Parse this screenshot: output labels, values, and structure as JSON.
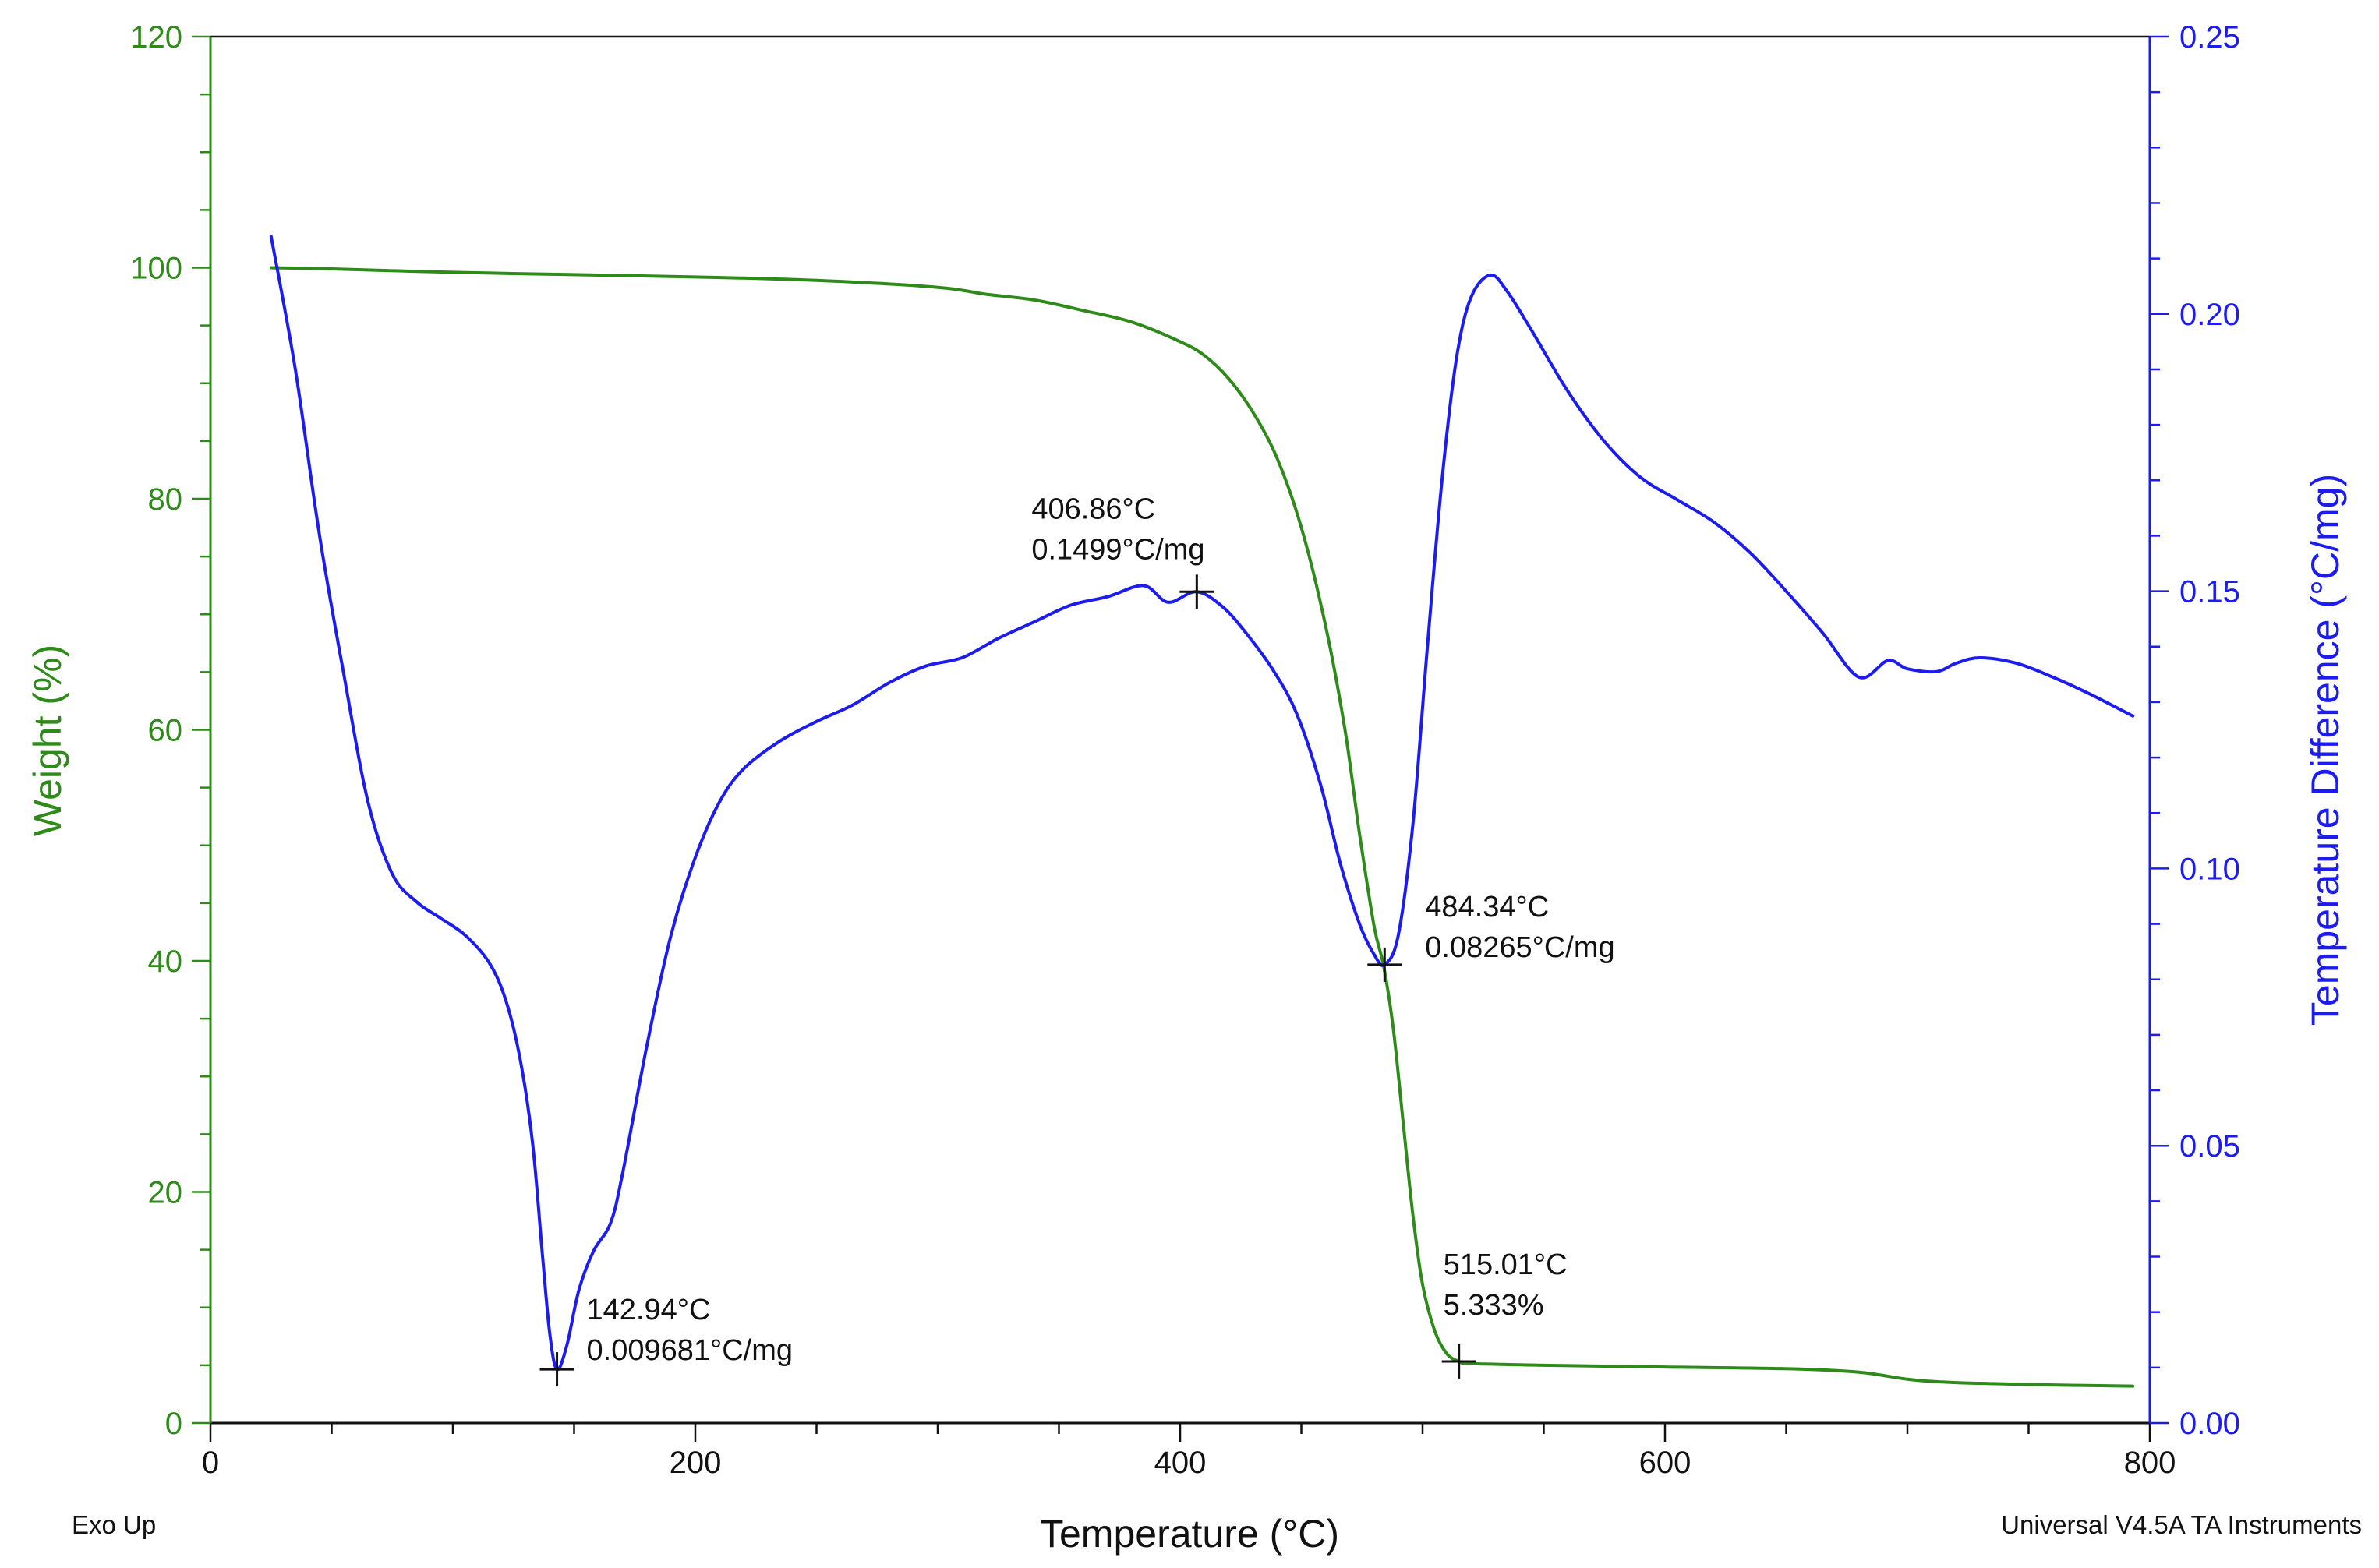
{
  "chart_data": {
    "type": "line",
    "x_axis": {
      "label": "Temperature (°C)",
      "range": [
        0,
        800
      ],
      "ticks": [
        0,
        200,
        400,
        600,
        800
      ]
    },
    "y_left": {
      "label": "Weight (%)",
      "range": [
        0,
        120
      ],
      "ticks": [
        0,
        20,
        40,
        60,
        80,
        100,
        120
      ],
      "color": "#2e8b1a"
    },
    "y_right": {
      "label": "Temperature Difference (°C/mg)",
      "range": [
        0,
        0.25
      ],
      "ticks": [
        "0.00",
        "0.05",
        "0.10",
        "0.15",
        "0.20",
        "0.25"
      ],
      "color": "#1c1cf0"
    },
    "series": [
      {
        "name": "Weight (%)",
        "axis": "left",
        "color": "#2e8b1a",
        "points": [
          [
            25,
            100
          ],
          [
            50,
            99.9
          ],
          [
            100,
            99.6
          ],
          [
            150,
            99.4
          ],
          [
            200,
            99.2
          ],
          [
            250,
            98.9
          ],
          [
            300,
            98.3
          ],
          [
            320,
            97.7
          ],
          [
            340,
            97.2
          ],
          [
            360,
            96.3
          ],
          [
            380,
            95.3
          ],
          [
            400,
            93.6
          ],
          [
            410,
            92.4
          ],
          [
            420,
            90.4
          ],
          [
            430,
            87.5
          ],
          [
            440,
            83.5
          ],
          [
            450,
            77.5
          ],
          [
            460,
            69
          ],
          [
            468,
            60
          ],
          [
            474,
            51
          ],
          [
            480,
            43
          ],
          [
            484,
            39.5
          ],
          [
            488,
            34
          ],
          [
            492,
            26
          ],
          [
            496,
            18
          ],
          [
            500,
            12
          ],
          [
            505,
            8
          ],
          [
            510,
            6
          ],
          [
            515,
            5.333
          ],
          [
            520,
            5.15
          ],
          [
            550,
            5
          ],
          [
            600,
            4.85
          ],
          [
            650,
            4.7
          ],
          [
            680,
            4.4
          ],
          [
            700,
            3.8
          ],
          [
            720,
            3.5
          ],
          [
            760,
            3.3
          ],
          [
            793,
            3.2
          ]
        ]
      },
      {
        "name": "Temperature Difference (°C/mg)",
        "axis": "right",
        "color": "#1c1cf0",
        "points": [
          [
            25,
            0.214
          ],
          [
            35,
            0.19
          ],
          [
            45,
            0.16
          ],
          [
            55,
            0.135
          ],
          [
            65,
            0.112
          ],
          [
            75,
            0.099
          ],
          [
            85,
            0.094
          ],
          [
            95,
            0.091
          ],
          [
            105,
            0.088
          ],
          [
            115,
            0.083
          ],
          [
            122,
            0.076
          ],
          [
            128,
            0.065
          ],
          [
            133,
            0.05
          ],
          [
            137,
            0.03
          ],
          [
            140,
            0.016
          ],
          [
            142.94,
            0.009681
          ],
          [
            147,
            0.014
          ],
          [
            152,
            0.024
          ],
          [
            158,
            0.031
          ],
          [
            165,
            0.036
          ],
          [
            170,
            0.045
          ],
          [
            180,
            0.068
          ],
          [
            190,
            0.088
          ],
          [
            200,
            0.102
          ],
          [
            210,
            0.112
          ],
          [
            220,
            0.118
          ],
          [
            235,
            0.123
          ],
          [
            250,
            0.1265
          ],
          [
            265,
            0.1295
          ],
          [
            280,
            0.1335
          ],
          [
            295,
            0.1365
          ],
          [
            310,
            0.138
          ],
          [
            325,
            0.1415
          ],
          [
            340,
            0.1445
          ],
          [
            355,
            0.1475
          ],
          [
            370,
            0.149
          ],
          [
            385,
            0.151
          ],
          [
            395,
            0.148
          ],
          [
            406.86,
            0.1499
          ],
          [
            418,
            0.147
          ],
          [
            428,
            0.142
          ],
          [
            438,
            0.136
          ],
          [
            448,
            0.128
          ],
          [
            458,
            0.115
          ],
          [
            466,
            0.101
          ],
          [
            474,
            0.09
          ],
          [
            480,
            0.0845
          ],
          [
            484.34,
            0.08265
          ],
          [
            490,
            0.088
          ],
          [
            496,
            0.108
          ],
          [
            502,
            0.14
          ],
          [
            508,
            0.17
          ],
          [
            514,
            0.192
          ],
          [
            520,
            0.203
          ],
          [
            528,
            0.207
          ],
          [
            535,
            0.204
          ],
          [
            545,
            0.197
          ],
          [
            560,
            0.186
          ],
          [
            575,
            0.177
          ],
          [
            590,
            0.1705
          ],
          [
            605,
            0.1665
          ],
          [
            620,
            0.1625
          ],
          [
            635,
            0.157
          ],
          [
            650,
            0.15
          ],
          [
            665,
            0.1425
          ],
          [
            680,
            0.1345
          ],
          [
            692,
            0.1375
          ],
          [
            700,
            0.136
          ],
          [
            712,
            0.1355
          ],
          [
            720,
            0.137
          ],
          [
            730,
            0.138
          ],
          [
            745,
            0.137
          ],
          [
            760,
            0.1345
          ],
          [
            775,
            0.1315
          ],
          [
            793,
            0.1275
          ]
        ]
      }
    ],
    "markers": [
      {
        "series": "Temperature Difference (°C/mg)",
        "x": 142.94,
        "y": 0.009681,
        "line1": "142.94°C",
        "line2": "0.009681°C/mg"
      },
      {
        "series": "Temperature Difference (°C/mg)",
        "x": 406.86,
        "y": 0.1499,
        "line1": "406.86°C",
        "line2": "0.1499°C/mg"
      },
      {
        "series": "Temperature Difference (°C/mg)",
        "x": 484.34,
        "y": 0.08265,
        "line1": "484.34°C",
        "line2": "0.08265°C/mg"
      },
      {
        "series": "Weight (%)",
        "x": 515.01,
        "y": 5.333,
        "line1": "515.01°C",
        "line2": "5.333%"
      }
    ],
    "footer_left": "Exo Up",
    "footer_right": "Universal V4.5A TA Instruments"
  }
}
